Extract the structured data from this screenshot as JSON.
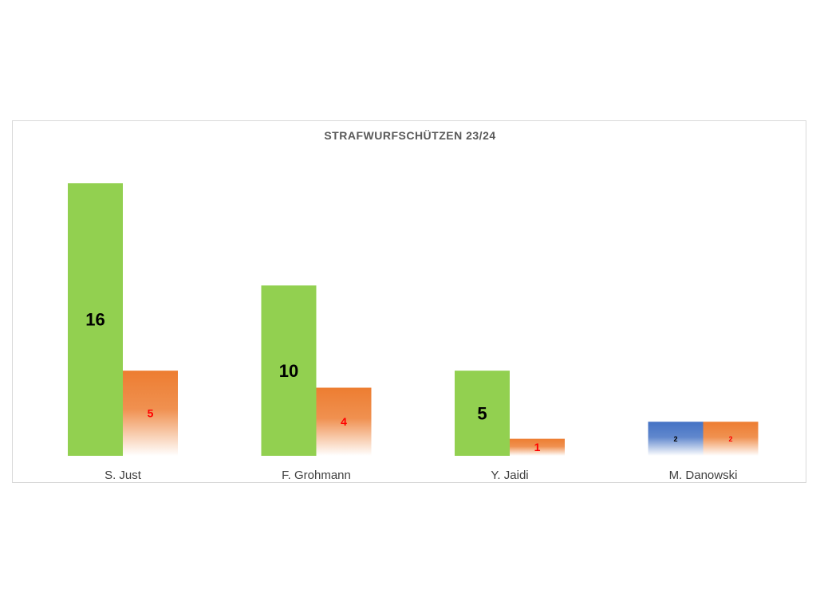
{
  "chart_data": {
    "type": "bar",
    "title": "STRAFWURFSCHÜTZEN 23/24",
    "categories": [
      "S. Just",
      "F. Grohmann",
      "Y. Jaidi",
      "M. Danowski"
    ],
    "series": [
      {
        "values": [
          16,
          10,
          5,
          2
        ]
      },
      {
        "values": [
          5,
          4,
          1,
          2
        ]
      }
    ],
    "bar_colors": [
      [
        "#92d050",
        "#92d050",
        "#92d050",
        "#4472c4"
      ],
      [
        "#ed7d31",
        "#ed7d31",
        "#ed7d31",
        "#ed7d31"
      ]
    ],
    "label_colors": [
      [
        "#000000",
        "#000000",
        "#000000",
        "#000000"
      ],
      [
        "#ff0000",
        "#ff0000",
        "#ff0000",
        "#ff0000"
      ]
    ],
    "gradient_fade": [
      [
        false,
        false,
        false,
        true
      ],
      [
        true,
        true,
        true,
        true
      ]
    ],
    "ylim": [
      0,
      16
    ],
    "grid": false,
    "legend": "none"
  }
}
